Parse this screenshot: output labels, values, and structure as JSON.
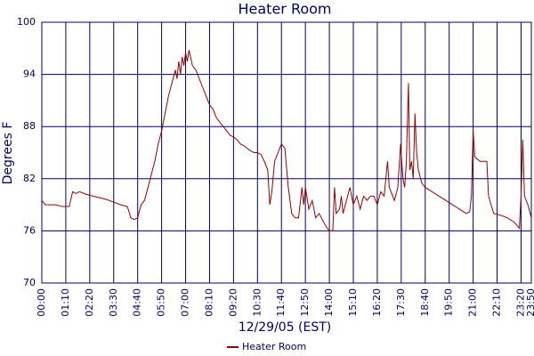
{
  "chart_data": {
    "type": "line",
    "title": "Heater Room",
    "x_label": "12/29/05 (EST)",
    "y_label": "Degrees F",
    "x": [
      0,
      10,
      20,
      40,
      60,
      80,
      90,
      100,
      110,
      130,
      150,
      170,
      190,
      210,
      230,
      250,
      260,
      270,
      280,
      290,
      300,
      310,
      320,
      330,
      340,
      350,
      360,
      370,
      380,
      390,
      395,
      400,
      405,
      410,
      415,
      420,
      425,
      430,
      440,
      450,
      460,
      470,
      480,
      490,
      500,
      510,
      520,
      530,
      540,
      550,
      560,
      570,
      580,
      590,
      600,
      610,
      620,
      630,
      640,
      650,
      660,
      666,
      672,
      680,
      690,
      700,
      710,
      720,
      730,
      740,
      750,
      760,
      765,
      770,
      780,
      790,
      800,
      810,
      830,
      840,
      850,
      855,
      860,
      870,
      875,
      880,
      890,
      900,
      910,
      920,
      930,
      940,
      950,
      960,
      970,
      980,
      990,
      1000,
      1010,
      1015,
      1020,
      1030,
      1040,
      1048,
      1055,
      1060,
      1065,
      1071,
      1075,
      1080,
      1085,
      1090,
      1095,
      1100,
      1110,
      1120,
      1140,
      1160,
      1180,
      1200,
      1220,
      1240,
      1250,
      1255,
      1260,
      1265,
      1280,
      1300,
      1305,
      1320,
      1340,
      1360,
      1380,
      1395,
      1400,
      1405,
      1410,
      1420,
      1430
    ],
    "series": [
      {
        "name": "Heater Room",
        "color": "#990000",
        "values": [
          79.5,
          79,
          79,
          79,
          78.8,
          78.8,
          80.5,
          80.3,
          80.5,
          80.2,
          80,
          79.8,
          79.6,
          79.3,
          79,
          78.8,
          77.5,
          77.3,
          77.5,
          79,
          79.5,
          81,
          82.5,
          84,
          86,
          87.5,
          89.5,
          91.5,
          93,
          94.5,
          93.5,
          95.5,
          94,
          96,
          95,
          96.5,
          95.5,
          96.8,
          95,
          94.5,
          93.5,
          92.5,
          91.5,
          90.5,
          90,
          89,
          88.5,
          88,
          87.5,
          87,
          86.8,
          86.5,
          86,
          85.8,
          85.5,
          85.2,
          85,
          85,
          84.8,
          84,
          83,
          79,
          80.5,
          84,
          85,
          86,
          85.5,
          81,
          78,
          77.5,
          77.5,
          81,
          79,
          81,
          78.5,
          79.5,
          77.5,
          78,
          76.5,
          76,
          76,
          81,
          78,
          78.5,
          80,
          78,
          79.5,
          81,
          79,
          80,
          78.5,
          80,
          79.5,
          80,
          80,
          79,
          80.5,
          80,
          84,
          81,
          80.5,
          79.5,
          81,
          86,
          82,
          81,
          84,
          93,
          83,
          84,
          82,
          89.5,
          85,
          83,
          81.5,
          81,
          80.5,
          80,
          79.5,
          79,
          78.5,
          78,
          78.2,
          80,
          87.5,
          84.5,
          84,
          84,
          80,
          78,
          77.8,
          77.5,
          77,
          76.3,
          80,
          86.5,
          80,
          79,
          77.5
        ]
      }
    ],
    "xlim": [
      0,
      1430
    ],
    "xticks": [
      {
        "value": 0,
        "label": "00:00"
      },
      {
        "value": 70,
        "label": "01:10"
      },
      {
        "value": 140,
        "label": "02:20"
      },
      {
        "value": 210,
        "label": "03:30"
      },
      {
        "value": 280,
        "label": "04:40"
      },
      {
        "value": 350,
        "label": "05:50"
      },
      {
        "value": 420,
        "label": "07:00"
      },
      {
        "value": 490,
        "label": "08:10"
      },
      {
        "value": 560,
        "label": "09:20"
      },
      {
        "value": 630,
        "label": "10:30"
      },
      {
        "value": 700,
        "label": "11:40"
      },
      {
        "value": 770,
        "label": "12:50"
      },
      {
        "value": 840,
        "label": "14:00"
      },
      {
        "value": 910,
        "label": "15:10"
      },
      {
        "value": 980,
        "label": "16:20"
      },
      {
        "value": 1050,
        "label": "17:30"
      },
      {
        "value": 1120,
        "label": "18:40"
      },
      {
        "value": 1190,
        "label": "19:50"
      },
      {
        "value": 1260,
        "label": "21:00"
      },
      {
        "value": 1330,
        "label": "22:10"
      },
      {
        "value": 1400,
        "label": "23:20"
      },
      {
        "value": 1430,
        "label": "23:50"
      }
    ],
    "ylim": [
      70,
      100
    ],
    "yticks": [
      70,
      76,
      82,
      88,
      94,
      100
    ],
    "grid": true
  }
}
